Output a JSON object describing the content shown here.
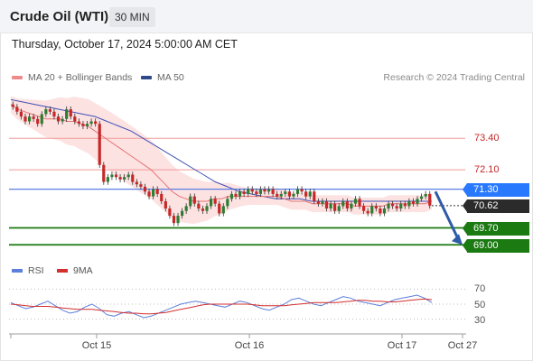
{
  "header": {
    "title": "Crude Oil (WTI)",
    "timeframe": "30 MIN"
  },
  "datetime": "Thursday, October 17, 2024 5:00:00 AM CET",
  "legend": {
    "ma20": "MA 20 + Bollinger Bands",
    "ma50": "MA 50",
    "credit": "Research © 2024 Trading Central"
  },
  "colors": {
    "up": "#2e7d32",
    "down": "#c62828",
    "ma20": "#e57373",
    "ma50": "#3f51b5",
    "bb_fill": "#fde2e2",
    "resistance": "#ef9a9a",
    "pivot_tag": "#2979ff",
    "support": "#1b7a12",
    "current_tag": "#2b2b2b",
    "rsi": "#5c7fdb",
    "rsi_ma": "#d32f2f"
  },
  "levels": {
    "r2": "73.40",
    "r1": "72.10",
    "pivot": "71.30",
    "current": "70.62",
    "s1": "69.70",
    "s2": "69.00"
  },
  "rsi_legend": {
    "rsi": "RSI",
    "ma": "9MA"
  },
  "rsi_axis": {
    "t70": "70",
    "t50": "50",
    "t30": "30"
  },
  "x_labels": {
    "d1": "Oct 15",
    "d2": "Oct 16",
    "d3": "Oct 17",
    "d4": "Oct 27"
  },
  "chart_data": {
    "type": "candlestick",
    "title": "Crude Oil (WTI)",
    "timeframe": "30 MIN",
    "ylim": [
      68.6,
      75.2
    ],
    "levels": {
      "resistance": [
        73.4,
        72.1
      ],
      "pivot": 71.3,
      "current": 70.62,
      "support": [
        69.7,
        69.0
      ]
    },
    "close": [
      74.7,
      74.5,
      74.3,
      74.1,
      74.3,
      74.2,
      74.0,
      74.4,
      74.6,
      74.5,
      74.3,
      74.1,
      74.2,
      74.6,
      74.3,
      74.1,
      74.0,
      73.9,
      74.0,
      74.1,
      74.0,
      72.3,
      71.6,
      71.8,
      71.9,
      71.8,
      71.7,
      71.8,
      71.9,
      71.6,
      71.5,
      71.4,
      71.2,
      71.0,
      71.3,
      71.1,
      70.8,
      70.5,
      70.2,
      69.9,
      70.2,
      70.4,
      70.6,
      71.0,
      70.7,
      70.5,
      70.4,
      70.6,
      70.9,
      70.7,
      70.3,
      70.6,
      70.9,
      71.1,
      71.0,
      71.2,
      71.1,
      71.3,
      71.2,
      71.1,
      71.3,
      71.2,
      71.3,
      71.1,
      71.0,
      71.1,
      71.2,
      71.0,
      71.1,
      71.3,
      71.2,
      71.0,
      71.2,
      70.8,
      70.7,
      70.8,
      70.5,
      70.7,
      70.4,
      70.6,
      70.8,
      70.5,
      70.7,
      70.9,
      70.6,
      70.4,
      70.3,
      70.6,
      70.5,
      70.3,
      70.5,
      70.7,
      70.6,
      70.5,
      70.7,
      70.6,
      70.8,
      70.7,
      70.9,
      71.0,
      71.1,
      70.62
    ],
    "ma20": [
      74.8,
      74.6,
      74.5,
      74.4,
      74.3,
      74.2,
      74.2,
      74.2,
      74.1,
      74.1,
      74.0,
      73.9,
      73.7,
      73.5,
      73.3,
      73.1,
      72.9,
      72.7,
      72.5,
      72.3,
      72.1,
      71.8,
      71.5,
      71.2,
      71.0,
      70.9,
      70.8,
      70.8,
      70.8,
      70.9,
      70.9,
      71.0,
      71.0,
      71.0,
      71.0,
      71.0,
      71.0,
      71.0,
      71.0,
      70.9,
      70.8,
      70.8,
      70.8,
      70.7,
      70.7,
      70.7,
      70.7,
      70.7,
      70.7,
      70.6,
      70.6,
      70.6,
      70.6,
      70.6,
      70.7,
      70.7,
      70.7,
      70.7,
      70.7,
      70.7,
      70.8
    ],
    "ma50": [
      75.0,
      74.9,
      74.8,
      74.7,
      74.6,
      74.5,
      74.4,
      74.3,
      74.1,
      73.9,
      73.7,
      73.4,
      73.1,
      72.8,
      72.5,
      72.2,
      71.9,
      71.6,
      71.4,
      71.2,
      71.1,
      71.0,
      70.9,
      70.9,
      70.9,
      70.8,
      70.8,
      70.8,
      70.8,
      70.8,
      70.8,
      70.8,
      70.8,
      70.8,
      70.8,
      70.8
    ],
    "rsi": {
      "ylim": [
        20,
        80
      ],
      "ticks": [
        70,
        50,
        30
      ],
      "rsi": [
        52,
        48,
        44,
        46,
        50,
        54,
        48,
        42,
        38,
        40,
        46,
        50,
        44,
        36,
        34,
        38,
        40,
        36,
        32,
        34,
        38,
        42,
        46,
        50,
        52,
        54,
        52,
        50,
        48,
        46,
        50,
        54,
        52,
        48,
        44,
        42,
        46,
        50,
        56,
        58,
        54,
        50,
        48,
        52,
        56,
        60,
        58,
        54,
        52,
        50,
        48,
        52,
        56,
        58,
        60,
        62,
        58,
        52
      ],
      "ma": [
        50,
        49,
        48,
        47,
        47,
        47,
        46,
        45,
        44,
        43,
        43,
        43,
        42,
        41,
        40,
        39,
        38,
        38,
        37,
        37,
        38,
        39,
        41,
        43,
        45,
        47,
        49,
        50,
        50,
        50,
        50,
        50,
        50,
        49,
        48,
        48,
        48,
        48,
        49,
        50,
        51,
        52,
        52,
        52,
        52,
        53,
        54,
        55,
        55,
        54,
        54,
        53,
        53,
        54,
        55,
        56,
        57,
        56
      ]
    }
  }
}
